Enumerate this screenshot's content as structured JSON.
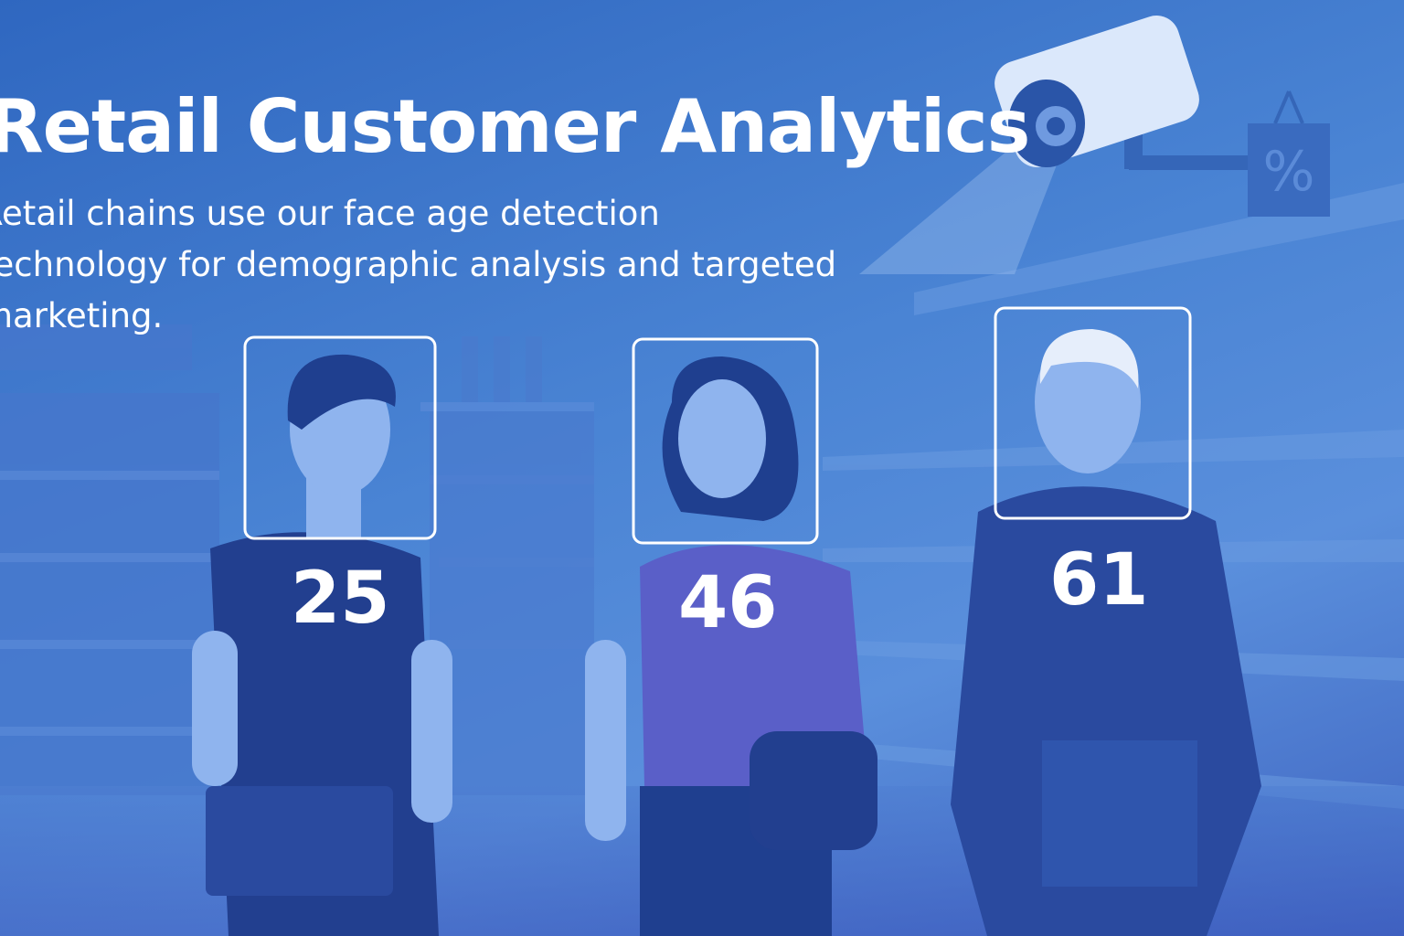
{
  "header": {
    "title": "Retail Customer Analytics",
    "subtitle": "Retail chains use our face age detection technology for demographic analysis and targeted marketing."
  },
  "detections": [
    {
      "age": "25"
    },
    {
      "age": "46"
    },
    {
      "age": "61"
    }
  ],
  "sign": {
    "symbol": "%"
  },
  "colors": {
    "background": "#3f73c8",
    "shirt_dark": "#223f8f",
    "shirt_purple": "#5a5fc8",
    "skin": "#8fb4ee",
    "box": "#ffffff"
  }
}
